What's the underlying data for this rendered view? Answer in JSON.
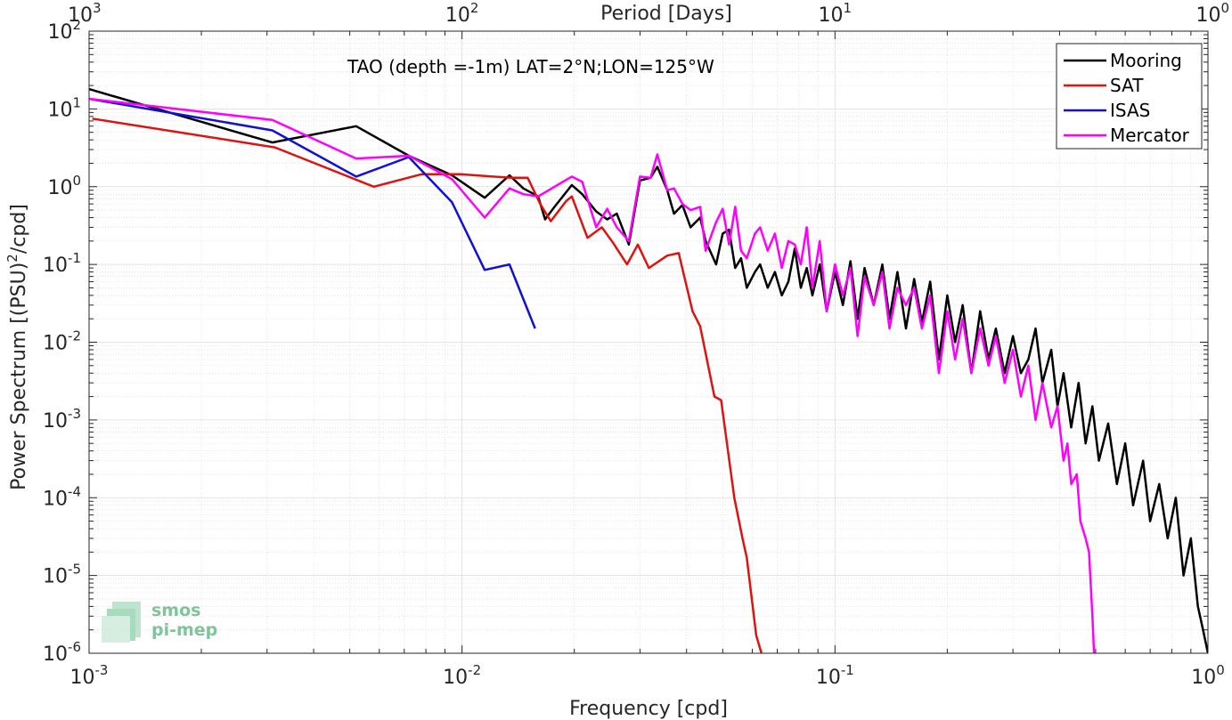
{
  "chart_data": {
    "type": "line",
    "title": "TAO (depth =-1m) LAT=2°N;LON=125°W",
    "xlabel": "Frequency [cpd]",
    "ylabel_main": "Power Spectrum [(PSU)",
    "ylabel_sup": "2",
    "ylabel_tail": "/cpd]",
    "top_xlabel": "Period [Days]",
    "xscale": "log",
    "yscale": "log",
    "xlim": [
      0.001,
      1
    ],
    "ylim": [
      1e-06,
      100
    ],
    "grid": true,
    "legend_position": "top-right",
    "x_ticks": [
      {
        "value": 0.001,
        "base": "10",
        "exp": "-3"
      },
      {
        "value": 0.01,
        "base": "10",
        "exp": "-2"
      },
      {
        "value": 0.1,
        "base": "10",
        "exp": "-1"
      },
      {
        "value": 1,
        "base": "10",
        "exp": "0"
      }
    ],
    "top_ticks": [
      {
        "value": 0.001,
        "base": "10",
        "exp": "3"
      },
      {
        "value": 0.01,
        "base": "10",
        "exp": "2"
      },
      {
        "value": 0.1,
        "base": "10",
        "exp": "1"
      },
      {
        "value": 1,
        "base": "10",
        "exp": "0"
      }
    ],
    "y_ticks": [
      {
        "value": 100,
        "base": "10",
        "exp": "2"
      },
      {
        "value": 10,
        "base": "10",
        "exp": "1"
      },
      {
        "value": 1,
        "base": "10",
        "exp": "0"
      },
      {
        "value": 0.1,
        "base": "10",
        "exp": "-1"
      },
      {
        "value": 0.01,
        "base": "10",
        "exp": "-2"
      },
      {
        "value": 0.001,
        "base": "10",
        "exp": "-3"
      },
      {
        "value": 0.0001,
        "base": "10",
        "exp": "-4"
      },
      {
        "value": 1e-05,
        "base": "10",
        "exp": "-5"
      },
      {
        "value": 1e-06,
        "base": "10",
        "exp": "-6"
      }
    ],
    "series": [
      {
        "name": "Mooring",
        "color": "#000000",
        "points": [
          [
            0.001,
            18
          ],
          [
            0.0031,
            3.7
          ],
          [
            0.0052,
            6.0
          ],
          [
            0.0072,
            2.5
          ],
          [
            0.0094,
            1.4
          ],
          [
            0.0115,
            0.72
          ],
          [
            0.0134,
            1.4
          ],
          [
            0.0146,
            0.95
          ],
          [
            0.016,
            0.75
          ],
          [
            0.0167,
            0.38
          ],
          [
            0.0177,
            0.55
          ],
          [
            0.0197,
            1.05
          ],
          [
            0.021,
            0.8
          ],
          [
            0.0229,
            0.48
          ],
          [
            0.0245,
            0.38
          ],
          [
            0.026,
            0.45
          ],
          [
            0.028,
            0.18
          ],
          [
            0.03,
            1.2
          ],
          [
            0.032,
            1.3
          ],
          [
            0.0334,
            1.8
          ],
          [
            0.0355,
            0.9
          ],
          [
            0.037,
            0.45
          ],
          [
            0.039,
            0.58
          ],
          [
            0.041,
            0.3
          ],
          [
            0.0435,
            0.4
          ],
          [
            0.045,
            0.2
          ],
          [
            0.048,
            0.1
          ],
          [
            0.05,
            0.25
          ],
          [
            0.052,
            0.28
          ],
          [
            0.054,
            0.09
          ],
          [
            0.056,
            0.12
          ],
          [
            0.058,
            0.05
          ],
          [
            0.061,
            0.08
          ],
          [
            0.063,
            0.1
          ],
          [
            0.066,
            0.05
          ],
          [
            0.069,
            0.08
          ],
          [
            0.072,
            0.04
          ],
          [
            0.075,
            0.06
          ],
          [
            0.078,
            0.16
          ],
          [
            0.081,
            0.05
          ],
          [
            0.084,
            0.09
          ],
          [
            0.087,
            0.04
          ],
          [
            0.091,
            0.1
          ],
          [
            0.095,
            0.025
          ],
          [
            0.1,
            0.08
          ],
          [
            0.105,
            0.03
          ],
          [
            0.11,
            0.11
          ],
          [
            0.115,
            0.02
          ],
          [
            0.12,
            0.09
          ],
          [
            0.127,
            0.03
          ],
          [
            0.134,
            0.1
          ],
          [
            0.14,
            0.02
          ],
          [
            0.147,
            0.08
          ],
          [
            0.155,
            0.015
          ],
          [
            0.163,
            0.065
          ],
          [
            0.171,
            0.018
          ],
          [
            0.18,
            0.06
          ],
          [
            0.19,
            0.006
          ],
          [
            0.2,
            0.04
          ],
          [
            0.21,
            0.01
          ],
          [
            0.22,
            0.03
          ],
          [
            0.232,
            0.004
          ],
          [
            0.245,
            0.025
          ],
          [
            0.258,
            0.006
          ],
          [
            0.27,
            0.015
          ],
          [
            0.285,
            0.004
          ],
          [
            0.3,
            0.012
          ],
          [
            0.315,
            0.004
          ],
          [
            0.33,
            0.006
          ],
          [
            0.345,
            0.015
          ],
          [
            0.36,
            0.003
          ],
          [
            0.38,
            0.008
          ],
          [
            0.395,
            0.0015
          ],
          [
            0.41,
            0.004
          ],
          [
            0.43,
            0.0008
          ],
          [
            0.45,
            0.003
          ],
          [
            0.47,
            0.0005
          ],
          [
            0.49,
            0.0015
          ],
          [
            0.51,
            0.0003
          ],
          [
            0.54,
            0.0009
          ],
          [
            0.57,
            0.00015
          ],
          [
            0.6,
            0.0005
          ],
          [
            0.63,
            8e-05
          ],
          [
            0.67,
            0.0003
          ],
          [
            0.7,
            5e-05
          ],
          [
            0.74,
            0.00015
          ],
          [
            0.78,
            3e-05
          ],
          [
            0.82,
            0.0001
          ],
          [
            0.86,
            1e-05
          ],
          [
            0.9,
            3e-05
          ],
          [
            0.94,
            4e-06
          ],
          [
            0.97,
            2e-06
          ],
          [
            1.0,
            1e-06
          ]
        ]
      },
      {
        "name": "SAT",
        "color": "#e0120f",
        "points": [
          [
            0.00102,
            7.5
          ],
          [
            0.00315,
            3.2
          ],
          [
            0.0058,
            1.0
          ],
          [
            0.0078,
            1.45
          ],
          [
            0.0099,
            1.45
          ],
          [
            0.0121,
            1.35
          ],
          [
            0.0136,
            1.3
          ],
          [
            0.015,
            1.3
          ],
          [
            0.0162,
            0.6
          ],
          [
            0.0173,
            0.36
          ],
          [
            0.019,
            0.65
          ],
          [
            0.0197,
            0.75
          ],
          [
            0.0217,
            0.22
          ],
          [
            0.0237,
            0.3
          ],
          [
            0.0254,
            0.19
          ],
          [
            0.0277,
            0.1
          ],
          [
            0.0296,
            0.18
          ],
          [
            0.0317,
            0.09
          ],
          [
            0.0355,
            0.13
          ],
          [
            0.0381,
            0.14
          ],
          [
            0.0415,
            0.025
          ],
          [
            0.0435,
            0.016
          ],
          [
            0.0475,
            0.002
          ],
          [
            0.0495,
            0.0018
          ],
          [
            0.0537,
            0.0001
          ],
          [
            0.0565,
            3e-05
          ],
          [
            0.058,
            1.7e-05
          ],
          [
            0.0615,
            1.7e-06
          ],
          [
            0.0635,
            1e-06
          ]
        ]
      },
      {
        "name": "ISAS",
        "color": "#1010d8",
        "points": [
          [
            0.001,
            13.5
          ],
          [
            0.0031,
            5.3
          ],
          [
            0.0052,
            1.35
          ],
          [
            0.0072,
            2.4
          ],
          [
            0.0094,
            0.63
          ],
          [
            0.0115,
            0.085
          ],
          [
            0.0134,
            0.1
          ],
          [
            0.0157,
            0.015
          ]
        ]
      },
      {
        "name": "Mercator",
        "color": "#ff00ff",
        "points": [
          [
            0.001,
            13.5
          ],
          [
            0.0031,
            7.2
          ],
          [
            0.0052,
            2.3
          ],
          [
            0.0072,
            2.5
          ],
          [
            0.0094,
            1.25
          ],
          [
            0.0115,
            0.4
          ],
          [
            0.0134,
            0.95
          ],
          [
            0.0146,
            0.8
          ],
          [
            0.016,
            0.75
          ],
          [
            0.0177,
            1.0
          ],
          [
            0.0197,
            1.35
          ],
          [
            0.021,
            1.15
          ],
          [
            0.0229,
            0.3
          ],
          [
            0.0245,
            0.52
          ],
          [
            0.026,
            0.3
          ],
          [
            0.028,
            0.2
          ],
          [
            0.03,
            1.35
          ],
          [
            0.032,
            1.3
          ],
          [
            0.0334,
            2.6
          ],
          [
            0.0355,
            0.9
          ],
          [
            0.037,
            0.95
          ],
          [
            0.039,
            0.6
          ],
          [
            0.041,
            0.5
          ],
          [
            0.0435,
            0.55
          ],
          [
            0.045,
            0.15
          ],
          [
            0.048,
            0.35
          ],
          [
            0.05,
            0.52
          ],
          [
            0.052,
            0.18
          ],
          [
            0.054,
            0.55
          ],
          [
            0.056,
            0.15
          ],
          [
            0.058,
            0.12
          ],
          [
            0.061,
            0.25
          ],
          [
            0.063,
            0.3
          ],
          [
            0.066,
            0.15
          ],
          [
            0.069,
            0.25
          ],
          [
            0.072,
            0.09
          ],
          [
            0.075,
            0.2
          ],
          [
            0.078,
            0.18
          ],
          [
            0.081,
            0.1
          ],
          [
            0.084,
            0.3
          ],
          [
            0.087,
            0.05
          ],
          [
            0.091,
            0.2
          ],
          [
            0.095,
            0.025
          ],
          [
            0.1,
            0.1
          ],
          [
            0.105,
            0.04
          ],
          [
            0.11,
            0.09
          ],
          [
            0.115,
            0.012
          ],
          [
            0.12,
            0.07
          ],
          [
            0.127,
            0.03
          ],
          [
            0.134,
            0.08
          ],
          [
            0.14,
            0.015
          ],
          [
            0.147,
            0.05
          ],
          [
            0.155,
            0.03
          ],
          [
            0.163,
            0.05
          ],
          [
            0.171,
            0.015
          ],
          [
            0.18,
            0.04
          ],
          [
            0.19,
            0.004
          ],
          [
            0.2,
            0.025
          ],
          [
            0.21,
            0.006
          ],
          [
            0.22,
            0.02
          ],
          [
            0.232,
            0.004
          ],
          [
            0.245,
            0.015
          ],
          [
            0.258,
            0.005
          ],
          [
            0.27,
            0.012
          ],
          [
            0.285,
            0.003
          ],
          [
            0.3,
            0.008
          ],
          [
            0.315,
            0.002
          ],
          [
            0.33,
            0.005
          ],
          [
            0.345,
            0.001
          ],
          [
            0.36,
            0.003
          ],
          [
            0.38,
            0.0008
          ],
          [
            0.395,
            0.0015
          ],
          [
            0.41,
            0.0003
          ],
          [
            0.42,
            0.0005
          ],
          [
            0.43,
            0.00015
          ],
          [
            0.445,
            0.0002
          ],
          [
            0.455,
            5e-05
          ],
          [
            0.47,
            3e-05
          ],
          [
            0.48,
            2e-05
          ],
          [
            0.49,
            3e-06
          ],
          [
            0.495,
            1e-06
          ]
        ]
      }
    ]
  },
  "watermark": {
    "line1": "smos",
    "line2": "pi-mep",
    "color": "#7fc49a"
  }
}
